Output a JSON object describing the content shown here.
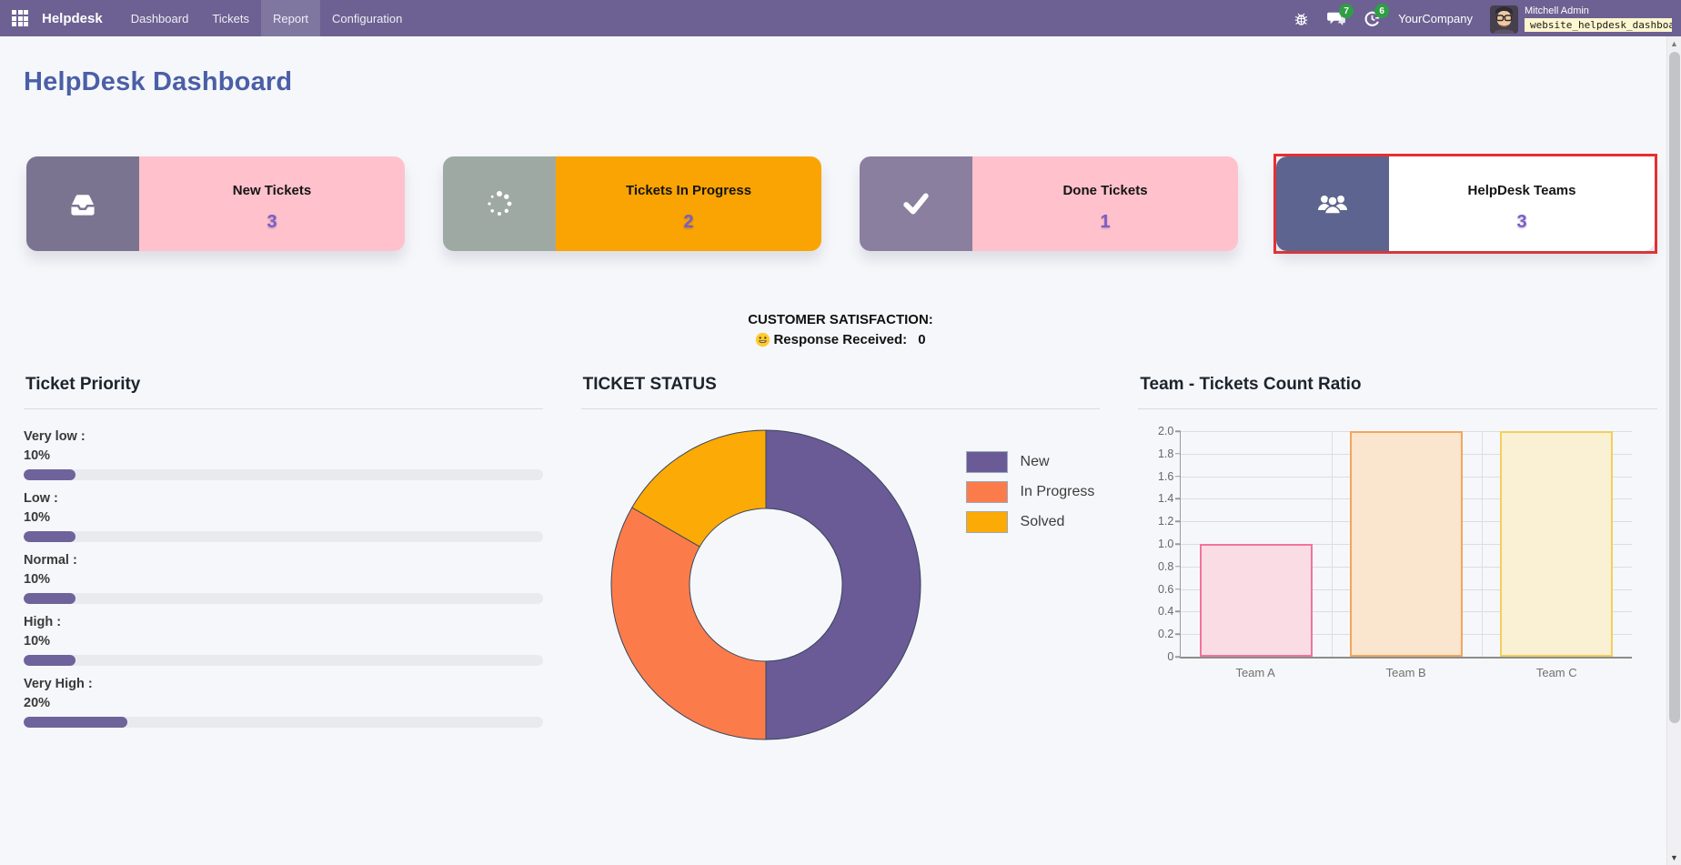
{
  "navbar": {
    "brand": "Helpdesk",
    "menu": [
      {
        "label": "Dashboard",
        "active": false
      },
      {
        "label": "Tickets",
        "active": false
      },
      {
        "label": "Report",
        "active": true
      },
      {
        "label": "Configuration",
        "active": false
      }
    ],
    "icons": [
      "apps-grid-icon",
      "bug-icon",
      "messages-icon",
      "activity-icon"
    ],
    "messages_badge": "7",
    "activities_badge": "6",
    "company": "YourCompany",
    "user_name": "Mitchell Admin",
    "database": "website_helpdesk_dashboa…"
  },
  "page_title": "HelpDesk Dashboard",
  "cards": [
    {
      "label": "New Tickets",
      "count": "3",
      "icon": "inbox-icon",
      "panel_color": "#7b7491",
      "body_color": "#ffc1cc",
      "highlight": false
    },
    {
      "label": "Tickets In Progress",
      "count": "2",
      "icon": "spinner-icon",
      "panel_color": "#9ea9a4",
      "body_color": "#f9a402",
      "highlight": false
    },
    {
      "label": "Done Tickets",
      "count": "1",
      "icon": "check-icon",
      "panel_color": "#8a7f9f",
      "body_color": "#ffc1cc",
      "highlight": false
    },
    {
      "label": "HelpDesk Teams",
      "count": "3",
      "icon": "users-icon",
      "panel_color": "#5c648f",
      "body_color": "#ffffff",
      "highlight": true
    }
  ],
  "highlight_border_color": "#e92f2f",
  "satisfaction": {
    "title": "CUSTOMER SATISFACTION:",
    "emoji": "smiley-icon",
    "response_label": "Response Received:",
    "response_value": "0"
  },
  "chart_data": [
    {
      "type": "bar",
      "variant": "horizontal-progress-list",
      "title": "Ticket Priority",
      "categories": [
        "Very low",
        "Low",
        "Normal",
        "High",
        "Very High"
      ],
      "labels_display": [
        "Very low :",
        "Low :",
        "Normal :",
        "High :",
        "Very High :"
      ],
      "values": [
        10,
        10,
        10,
        10,
        20
      ],
      "value_labels": [
        "10%",
        "10%",
        "10%",
        "10%",
        "20%"
      ],
      "unit": "%",
      "bar_color": "#6f639b",
      "track_color": "#e9eaee"
    },
    {
      "type": "pie",
      "variant": "donut",
      "title": "TICKET STATUS",
      "labels": [
        "New",
        "In Progress",
        "Solved"
      ],
      "values": [
        3,
        2,
        1
      ],
      "percentages": [
        50,
        33.3,
        16.7
      ],
      "colors": [
        "#6a5a96",
        "#fb7c4a",
        "#fcaa05"
      ],
      "slice_border_color": "#37465c",
      "legend_position": "right"
    },
    {
      "type": "bar",
      "title": "Team - Tickets Count Ratio",
      "categories": [
        "Team A",
        "Team B",
        "Team C"
      ],
      "values": [
        1,
        2,
        2
      ],
      "ylim": [
        0,
        2
      ],
      "ytick_step": 0.2,
      "fill_colors": [
        "#fadde4",
        "#fae5cf",
        "#faf0d3"
      ],
      "border_colors": [
        "#f1749b",
        "#f2a65a",
        "#f2cf5b"
      ],
      "grid": true
    }
  ]
}
